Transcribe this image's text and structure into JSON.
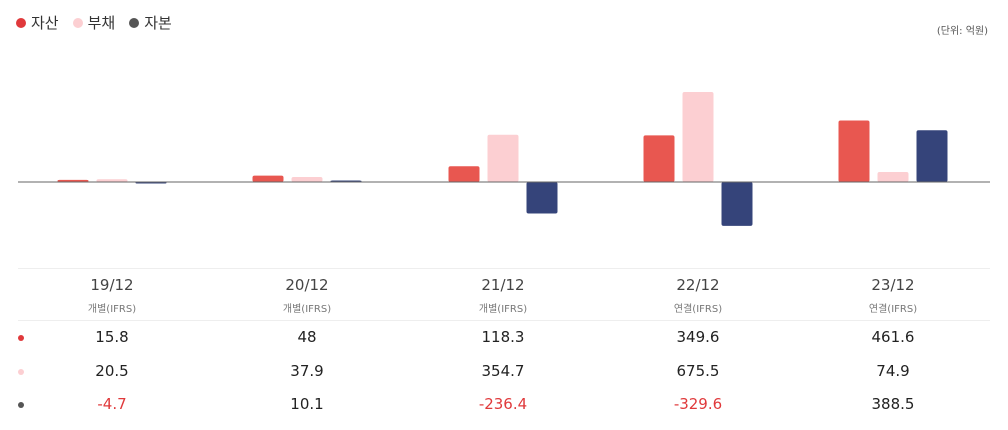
{
  "legend": [
    {
      "label": "자산",
      "color": "#e0393b"
    },
    {
      "label": "부채",
      "color": "#fccfd2"
    },
    {
      "label": "자본",
      "color": "#555555"
    }
  ],
  "unit_label": "(단위: 억원)",
  "chart_data": {
    "type": "bar",
    "categories": [
      "19/12",
      "20/12",
      "21/12",
      "22/12",
      "23/12"
    ],
    "category_types": [
      "개별(IFRS)",
      "개별(IFRS)",
      "개별(IFRS)",
      "연결(IFRS)",
      "연결(IFRS)"
    ],
    "series": [
      {
        "name": "자산",
        "values": [
          15.8,
          48,
          118.3,
          349.6,
          461.6
        ],
        "color": "#e85750"
      },
      {
        "name": "부채",
        "values": [
          20.5,
          37.9,
          354.7,
          675.5,
          74.9
        ],
        "color": "#fccfd2"
      },
      {
        "name": "자본",
        "values": [
          -4.7,
          10.1,
          -236.4,
          -329.6,
          388.5
        ],
        "color": "#35447a"
      }
    ],
    "grid": false,
    "legend_position": "top-left"
  },
  "table": {
    "rows": [
      {
        "dot_color": "#e0393b",
        "values": [
          "15.8",
          "48",
          "118.3",
          "349.6",
          "461.6"
        ]
      },
      {
        "dot_color": "#fccfd2",
        "values": [
          "20.5",
          "37.9",
          "354.7",
          "675.5",
          "74.9"
        ]
      },
      {
        "dot_color": "#555555",
        "values": [
          "-4.7",
          "10.1",
          "-236.4",
          "-329.6",
          "388.5"
        ]
      }
    ]
  }
}
